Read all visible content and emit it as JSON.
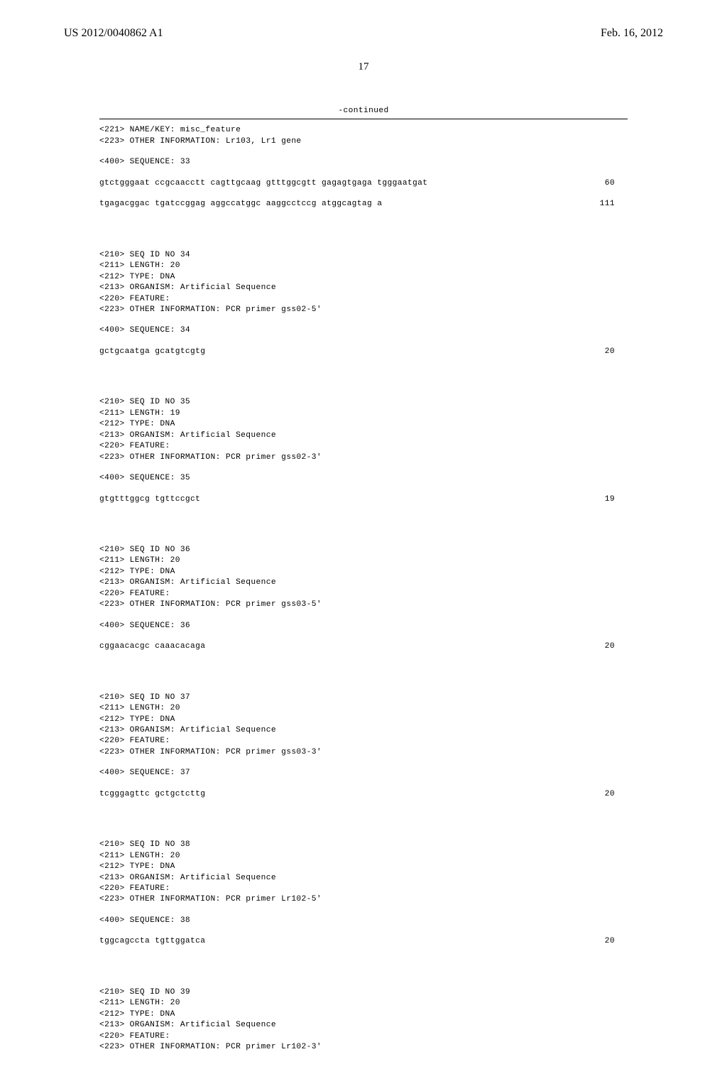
{
  "header": {
    "pub_number": "US 2012/0040862 A1",
    "pub_date": "Feb. 16, 2012"
  },
  "page_number": "17",
  "continued_label": "-continued",
  "entries": [
    {
      "meta": [
        "<221> NAME/KEY: misc_feature",
        "<223> OTHER INFORMATION: Lr103, Lr1 gene"
      ],
      "seq_label": "<400> SEQUENCE: 33",
      "seq_lines": [
        {
          "text": "gtctgggaat ccgcaacctt cagttgcaag gtttggcgtt gagagtgaga tgggaatgat",
          "num": "60"
        },
        {
          "text": "tgagacggac tgatccggag aggccatggc aaggcctccg atggcagtag a",
          "num": "111"
        }
      ]
    },
    {
      "meta": [
        "<210> SEQ ID NO 34",
        "<211> LENGTH: 20",
        "<212> TYPE: DNA",
        "<213> ORGANISM: Artificial Sequence",
        "<220> FEATURE:",
        "<223> OTHER INFORMATION: PCR primer gss02-5'"
      ],
      "seq_label": "<400> SEQUENCE: 34",
      "seq_lines": [
        {
          "text": "gctgcaatga gcatgtcgtg",
          "num": "20"
        }
      ]
    },
    {
      "meta": [
        "<210> SEQ ID NO 35",
        "<211> LENGTH: 19",
        "<212> TYPE: DNA",
        "<213> ORGANISM: Artificial Sequence",
        "<220> FEATURE:",
        "<223> OTHER INFORMATION: PCR primer gss02-3'"
      ],
      "seq_label": "<400> SEQUENCE: 35",
      "seq_lines": [
        {
          "text": "gtgtttggcg tgttccgct",
          "num": "19"
        }
      ]
    },
    {
      "meta": [
        "<210> SEQ ID NO 36",
        "<211> LENGTH: 20",
        "<212> TYPE: DNA",
        "<213> ORGANISM: Artificial Sequence",
        "<220> FEATURE:",
        "<223> OTHER INFORMATION: PCR primer gss03-5'"
      ],
      "seq_label": "<400> SEQUENCE: 36",
      "seq_lines": [
        {
          "text": "cggaacacgc caaacacaga",
          "num": "20"
        }
      ]
    },
    {
      "meta": [
        "<210> SEQ ID NO 37",
        "<211> LENGTH: 20",
        "<212> TYPE: DNA",
        "<213> ORGANISM: Artificial Sequence",
        "<220> FEATURE:",
        "<223> OTHER INFORMATION: PCR primer gss03-3'"
      ],
      "seq_label": "<400> SEQUENCE: 37",
      "seq_lines": [
        {
          "text": "tcgggagttc gctgctcttg",
          "num": "20"
        }
      ]
    },
    {
      "meta": [
        "<210> SEQ ID NO 38",
        "<211> LENGTH: 20",
        "<212> TYPE: DNA",
        "<213> ORGANISM: Artificial Sequence",
        "<220> FEATURE:",
        "<223> OTHER INFORMATION: PCR primer Lr102-5'"
      ],
      "seq_label": "<400> SEQUENCE: 38",
      "seq_lines": [
        {
          "text": "tggcagccta tgttggatca",
          "num": "20"
        }
      ]
    },
    {
      "meta": [
        "<210> SEQ ID NO 39",
        "<211> LENGTH: 20",
        "<212> TYPE: DNA",
        "<213> ORGANISM: Artificial Sequence",
        "<220> FEATURE:",
        "<223> OTHER INFORMATION: PCR primer Lr102-3'"
      ],
      "seq_label": null,
      "seq_lines": []
    }
  ]
}
